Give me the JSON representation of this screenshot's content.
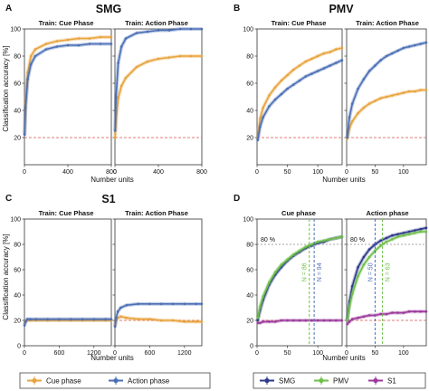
{
  "panels": {
    "A": {
      "letter": "A",
      "title": "SMG",
      "ylabel": "Classification accuracy [%]",
      "xlabel": "Number units",
      "subplots": [
        {
          "title": "Train: Cue Phase",
          "xticks": [
            "0",
            "400",
            "800"
          ]
        },
        {
          "title": "Train: Action Phase",
          "xticks": [
            "0",
            "400",
            "800"
          ]
        }
      ],
      "yticks": [
        "20",
        "40",
        "60",
        "80",
        "100"
      ]
    },
    "B": {
      "letter": "B",
      "title": "PMV",
      "xlabel": "Number units",
      "subplots": [
        {
          "title": "Train: Cue Phase",
          "xticks": [
            "0",
            "50",
            "100"
          ]
        },
        {
          "title": "Train: Action Phase",
          "xticks": [
            "0",
            "50",
            "100"
          ]
        }
      ],
      "yticks": [
        "20",
        "40",
        "60",
        "80",
        "100"
      ]
    },
    "C": {
      "letter": "C",
      "title": "S1",
      "ylabel": "Classification accuracy [%]",
      "xlabel": "Number units",
      "subplots": [
        {
          "title": "Train: Cue Phase",
          "xticks": [
            "0",
            "600",
            "1200"
          ]
        },
        {
          "title": "Train: Action Phase",
          "xticks": [
            "0",
            "600",
            "1200"
          ]
        }
      ],
      "yticks": [
        "0",
        "20",
        "40",
        "60",
        "80",
        "100"
      ]
    },
    "D": {
      "letter": "D",
      "xlabel": "Number units",
      "subplots": [
        {
          "title": "Cue phase",
          "xticks": [
            "0",
            "50",
            "100"
          ],
          "threshold_label": "80 %",
          "n_labels": [
            "N = 86",
            "N = 94"
          ]
        },
        {
          "title": "Action phase",
          "xticks": [
            "0",
            "50",
            "100"
          ],
          "threshold_label": "80 %",
          "n_labels": [
            "N = 50",
            "N = 63"
          ]
        }
      ],
      "yticks": [
        "0",
        "20",
        "40",
        "60",
        "80",
        "100"
      ]
    }
  },
  "legends": {
    "left": [
      {
        "label": "Cue phase",
        "color": "#E8A33D"
      },
      {
        "label": "Action phase",
        "color": "#4B6FB5"
      }
    ],
    "right": [
      {
        "label": "SMG",
        "color": "#2E3A8C"
      },
      {
        "label": "PMV",
        "color": "#6FBF4A"
      },
      {
        "label": "S1",
        "color": "#9B3A9B"
      }
    ]
  },
  "chart_data": [
    {
      "type": "line",
      "panel": "A",
      "subtitle": "Train: Cue Phase",
      "xlim": [
        0,
        800
      ],
      "ylim": [
        0,
        100
      ],
      "chance": 20,
      "series": [
        {
          "name": "Cue phase",
          "color": "#E8A33D",
          "x": [
            2,
            10,
            30,
            60,
            100,
            200,
            300,
            400,
            500,
            600,
            700,
            800
          ],
          "y": [
            23,
            45,
            68,
            80,
            85,
            89,
            91,
            92,
            93,
            93,
            94,
            94
          ]
        },
        {
          "name": "Action phase",
          "color": "#4B6FB5",
          "x": [
            2,
            10,
            30,
            60,
            100,
            200,
            300,
            400,
            500,
            600,
            700,
            800
          ],
          "y": [
            22,
            42,
            63,
            74,
            80,
            85,
            87,
            88,
            88,
            89,
            89,
            89
          ]
        }
      ]
    },
    {
      "type": "line",
      "panel": "A",
      "subtitle": "Train: Action Phase",
      "xlim": [
        0,
        800
      ],
      "ylim": [
        0,
        100
      ],
      "chance": 20,
      "series": [
        {
          "name": "Cue phase",
          "color": "#E8A33D",
          "x": [
            2,
            10,
            30,
            60,
            100,
            200,
            300,
            400,
            500,
            600,
            700,
            800
          ],
          "y": [
            20,
            33,
            49,
            58,
            64,
            72,
            76,
            78,
            79,
            80,
            80,
            80
          ]
        },
        {
          "name": "Action phase",
          "color": "#4B6FB5",
          "x": [
            2,
            10,
            30,
            60,
            100,
            200,
            300,
            400,
            500,
            600,
            700,
            800
          ],
          "y": [
            25,
            50,
            75,
            87,
            93,
            97,
            98,
            99,
            99,
            100,
            100,
            100
          ]
        }
      ]
    },
    {
      "type": "line",
      "panel": "B",
      "subtitle": "Train: Cue Phase",
      "xlim": [
        0,
        140
      ],
      "ylim": [
        0,
        100
      ],
      "chance": 20,
      "series": [
        {
          "name": "Cue phase",
          "color": "#E8A33D",
          "x": [
            1,
            5,
            10,
            20,
            30,
            40,
            50,
            60,
            70,
            80,
            90,
            100,
            110,
            120,
            130,
            140
          ],
          "y": [
            20,
            34,
            42,
            51,
            57,
            62,
            66,
            70,
            73,
            76,
            78,
            80,
            82,
            83,
            85,
            86
          ]
        },
        {
          "name": "Action phase",
          "color": "#4B6FB5",
          "x": [
            1,
            5,
            10,
            20,
            30,
            40,
            50,
            60,
            70,
            80,
            90,
            100,
            110,
            120,
            130,
            140
          ],
          "y": [
            18,
            28,
            35,
            43,
            48,
            52,
            56,
            59,
            62,
            65,
            67,
            69,
            71,
            73,
            75,
            77
          ]
        }
      ]
    },
    {
      "type": "line",
      "panel": "B",
      "subtitle": "Train: Action Phase",
      "xlim": [
        0,
        140
      ],
      "ylim": [
        0,
        100
      ],
      "chance": 20,
      "series": [
        {
          "name": "Cue phase",
          "color": "#E8A33D",
          "x": [
            1,
            5,
            10,
            20,
            30,
            40,
            50,
            60,
            70,
            80,
            90,
            100,
            110,
            120,
            130,
            140
          ],
          "y": [
            19,
            27,
            32,
            38,
            42,
            45,
            47,
            49,
            50,
            51,
            52,
            53,
            54,
            54,
            55,
            55
          ]
        },
        {
          "name": "Action phase",
          "color": "#4B6FB5",
          "x": [
            1,
            5,
            10,
            20,
            30,
            40,
            50,
            60,
            70,
            80,
            90,
            100,
            110,
            120,
            130,
            140
          ],
          "y": [
            20,
            35,
            45,
            56,
            63,
            69,
            73,
            77,
            80,
            82,
            84,
            86,
            87,
            88,
            89,
            90
          ]
        }
      ]
    },
    {
      "type": "line",
      "panel": "C",
      "subtitle": "Train: Cue Phase",
      "xlim": [
        0,
        1500
      ],
      "ylim": [
        0,
        100
      ],
      "chance": 20,
      "series": [
        {
          "name": "Cue phase",
          "color": "#E8A33D",
          "x": [
            2,
            20,
            50,
            100,
            200,
            400,
            600,
            800,
            1000,
            1200,
            1400,
            1500
          ],
          "y": [
            18,
            19,
            20,
            20,
            20,
            20,
            20,
            20,
            20,
            20,
            20,
            20
          ]
        },
        {
          "name": "Action phase",
          "color": "#4B6FB5",
          "x": [
            2,
            20,
            50,
            100,
            200,
            400,
            600,
            800,
            1000,
            1200,
            1400,
            1500
          ],
          "y": [
            16,
            19,
            21,
            21,
            21,
            21,
            21,
            21,
            21,
            21,
            21,
            21
          ]
        }
      ]
    },
    {
      "type": "line",
      "panel": "C",
      "subtitle": "Train: Action Phase",
      "xlim": [
        0,
        1500
      ],
      "ylim": [
        0,
        100
      ],
      "chance": 20,
      "series": [
        {
          "name": "Cue phase",
          "color": "#E8A33D",
          "x": [
            2,
            20,
            50,
            100,
            200,
            400,
            600,
            800,
            1000,
            1200,
            1400,
            1500
          ],
          "y": [
            16,
            20,
            22,
            23,
            22,
            21,
            21,
            20,
            20,
            19,
            19,
            19
          ]
        },
        {
          "name": "Action phase",
          "color": "#4B6FB5",
          "x": [
            2,
            20,
            50,
            100,
            200,
            400,
            600,
            800,
            1000,
            1200,
            1400,
            1500
          ],
          "y": [
            15,
            22,
            27,
            30,
            32,
            33,
            33,
            33,
            33,
            33,
            33,
            33
          ]
        }
      ]
    },
    {
      "type": "line",
      "panel": "D",
      "subtitle": "Cue phase",
      "xlim": [
        0,
        140
      ],
      "ylim": [
        0,
        100
      ],
      "chance": 20,
      "threshold": 80,
      "vlines": [
        {
          "x": 86,
          "color": "#6FBF4A",
          "label": "N = 86"
        },
        {
          "x": 94,
          "color": "#4B6FB5",
          "label": "N = 94"
        }
      ],
      "series": [
        {
          "name": "SMG",
          "color": "#2E3A8C",
          "x": [
            1,
            5,
            10,
            20,
            30,
            40,
            50,
            60,
            70,
            80,
            90,
            100,
            110,
            120,
            130,
            140
          ],
          "y": [
            20,
            28,
            36,
            48,
            56,
            62,
            67,
            71,
            74,
            77,
            79,
            81,
            82,
            84,
            85,
            86
          ]
        },
        {
          "name": "PMV",
          "color": "#6FBF4A",
          "x": [
            1,
            5,
            10,
            20,
            30,
            40,
            50,
            60,
            70,
            80,
            90,
            100,
            110,
            120,
            130,
            140
          ],
          "y": [
            22,
            31,
            39,
            50,
            58,
            64,
            68,
            72,
            75,
            78,
            80,
            82,
            83,
            84,
            85,
            86
          ]
        },
        {
          "name": "S1",
          "color": "#9B3A9B",
          "x": [
            1,
            5,
            10,
            20,
            30,
            40,
            50,
            60,
            70,
            80,
            90,
            100,
            110,
            120,
            130,
            140
          ],
          "y": [
            18,
            18,
            19,
            19,
            19,
            20,
            20,
            20,
            20,
            20,
            20,
            20,
            20,
            20,
            20,
            20
          ]
        }
      ]
    },
    {
      "type": "line",
      "panel": "D",
      "subtitle": "Action phase",
      "xlim": [
        0,
        140
      ],
      "ylim": [
        0,
        100
      ],
      "chance": 20,
      "threshold": 80,
      "vlines": [
        {
          "x": 50,
          "color": "#4B6FB5",
          "label": "N = 50"
        },
        {
          "x": 63,
          "color": "#6FBF4A",
          "label": "N = 63"
        }
      ],
      "series": [
        {
          "name": "SMG",
          "color": "#2E3A8C",
          "x": [
            1,
            5,
            10,
            20,
            30,
            40,
            50,
            60,
            70,
            80,
            90,
            100,
            110,
            120,
            130,
            140
          ],
          "y": [
            20,
            35,
            47,
            62,
            70,
            76,
            80,
            83,
            85,
            87,
            88,
            89,
            90,
            91,
            92,
            93
          ]
        },
        {
          "name": "PMV",
          "color": "#6FBF4A",
          "x": [
            1,
            5,
            10,
            20,
            30,
            40,
            50,
            60,
            70,
            80,
            90,
            100,
            110,
            120,
            130,
            140
          ],
          "y": [
            20,
            31,
            41,
            55,
            64,
            70,
            75,
            79,
            82,
            84,
            86,
            87,
            88,
            89,
            90,
            90
          ]
        },
        {
          "name": "S1",
          "color": "#9B3A9B",
          "x": [
            1,
            5,
            10,
            20,
            30,
            40,
            50,
            60,
            70,
            80,
            90,
            100,
            110,
            120,
            130,
            140
          ],
          "y": [
            17,
            19,
            21,
            22,
            23,
            24,
            24,
            25,
            25,
            26,
            26,
            26,
            27,
            27,
            27,
            27
          ]
        }
      ]
    }
  ]
}
